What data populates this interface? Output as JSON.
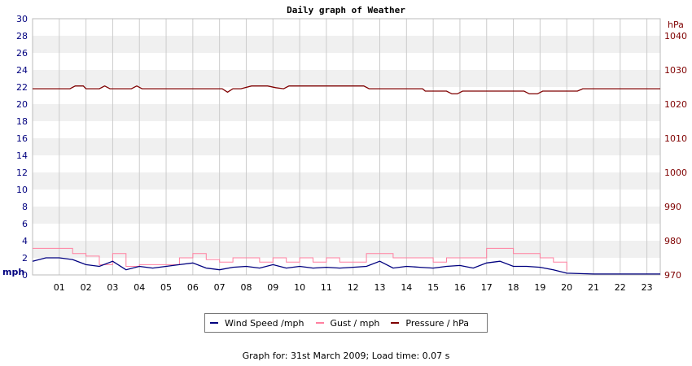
{
  "chart_data": {
    "type": "line",
    "title": "Daily graph of Weather",
    "left_axis": {
      "unit": "mph",
      "range": [
        0,
        30
      ],
      "ticks": [
        "0",
        "2",
        "4",
        "6",
        "8",
        "10",
        "12",
        "14",
        "16",
        "18",
        "20",
        "22",
        "24",
        "26",
        "28",
        "30"
      ]
    },
    "right_axis": {
      "unit": "hPa",
      "range": [
        970,
        1045
      ],
      "ticks": [
        "970",
        "980",
        "990",
        "1000",
        "1010",
        "1020",
        "1030",
        "1040"
      ]
    },
    "x_axis": {
      "range": [
        0,
        23.5
      ],
      "ticks": [
        "01",
        "02",
        "03",
        "04",
        "05",
        "06",
        "07",
        "08",
        "09",
        "10",
        "11",
        "12",
        "13",
        "14",
        "15",
        "16",
        "17",
        "18",
        "19",
        "20",
        "21",
        "22",
        "23"
      ]
    },
    "grid": "horizontal bands with vertical hour lines",
    "legend_placement": "bottom-center",
    "series": [
      {
        "name": "Wind Speed /mph",
        "axis": "left",
        "color": "#00007f",
        "x": [
          0,
          0.5,
          1,
          1.5,
          2,
          2.5,
          3,
          3.5,
          4,
          4.5,
          5,
          5.5,
          6,
          6.5,
          7,
          7.5,
          8,
          8.5,
          9,
          9.5,
          10,
          10.5,
          11,
          11.5,
          12,
          12.5,
          13,
          13.5,
          14,
          14.5,
          15,
          15.5,
          16,
          16.5,
          17,
          17.5,
          18,
          18.5,
          19,
          19.5,
          20,
          21,
          22,
          23,
          23.5
        ],
        "values": [
          1.6,
          2.0,
          2.0,
          1.8,
          1.2,
          1.0,
          1.6,
          0.6,
          1.0,
          0.8,
          1.0,
          1.2,
          1.4,
          0.8,
          0.6,
          0.9,
          1.0,
          0.8,
          1.2,
          0.8,
          1.0,
          0.8,
          0.9,
          0.8,
          0.9,
          1.0,
          1.6,
          0.8,
          1.0,
          0.9,
          0.8,
          1.0,
          1.1,
          0.8,
          1.4,
          1.6,
          1.0,
          1.0,
          0.9,
          0.6,
          0.2,
          0.1,
          0.1,
          0.1,
          0.1
        ]
      },
      {
        "name": "Gust / mph",
        "axis": "left",
        "color": "#ff80a0",
        "x": [
          0,
          0.5,
          1,
          1.5,
          2,
          2.5,
          3,
          3.5,
          4,
          4.5,
          5,
          5.5,
          6,
          6.5,
          7,
          7.5,
          8,
          8.5,
          9,
          9.5,
          10,
          10.5,
          11,
          11.5,
          12,
          12.5,
          13,
          13.5,
          14,
          14.5,
          15,
          15.5,
          16,
          16.5,
          17,
          17.5,
          18,
          18.5,
          19,
          19.5,
          20
        ],
        "values": [
          3.1,
          3.1,
          3.1,
          2.5,
          2.2,
          1.2,
          2.5,
          1.0,
          1.2,
          1.2,
          1.2,
          2.0,
          2.5,
          1.8,
          1.5,
          2.0,
          2.0,
          1.5,
          2.0,
          1.5,
          2.0,
          1.5,
          2.0,
          1.5,
          1.5,
          2.5,
          2.5,
          2.0,
          2.0,
          2.0,
          1.5,
          2.0,
          2.0,
          2.0,
          3.1,
          3.1,
          2.5,
          2.5,
          2.0,
          1.5,
          0.5
        ]
      },
      {
        "name": "Pressure / hPa",
        "axis": "right",
        "color": "#7f0000",
        "x": [
          0,
          1.4,
          1.6,
          1.9,
          2.0,
          2.5,
          2.7,
          2.9,
          3.7,
          3.9,
          4.1,
          7.1,
          7.3,
          7.5,
          7.8,
          8.2,
          8.5,
          8.8,
          9.1,
          9.4,
          9.6,
          12.4,
          12.6,
          14.6,
          14.7,
          15.5,
          15.7,
          15.9,
          16.1,
          18.4,
          18.6,
          18.9,
          19.1,
          20.4,
          20.6,
          23.5
        ],
        "values": [
          1024.5,
          1024.5,
          1025.3,
          1025.3,
          1024.5,
          1024.5,
          1025.3,
          1024.5,
          1024.5,
          1025.3,
          1024.5,
          1024.5,
          1023.5,
          1024.5,
          1024.5,
          1025.3,
          1025.3,
          1025.3,
          1024.8,
          1024.5,
          1025.3,
          1025.3,
          1024.5,
          1024.5,
          1023.8,
          1023.8,
          1023.0,
          1023.0,
          1023.8,
          1023.8,
          1023.0,
          1023.0,
          1023.8,
          1023.8,
          1024.5,
          1024.5
        ]
      }
    ]
  },
  "footer": "Graph for: 31st March 2009; Load time: 0.07 s",
  "colors": {
    "left_axis": "#00007f",
    "right_axis": "#7f0000",
    "band": "#f0f0f0",
    "grid": "#cccccc"
  }
}
